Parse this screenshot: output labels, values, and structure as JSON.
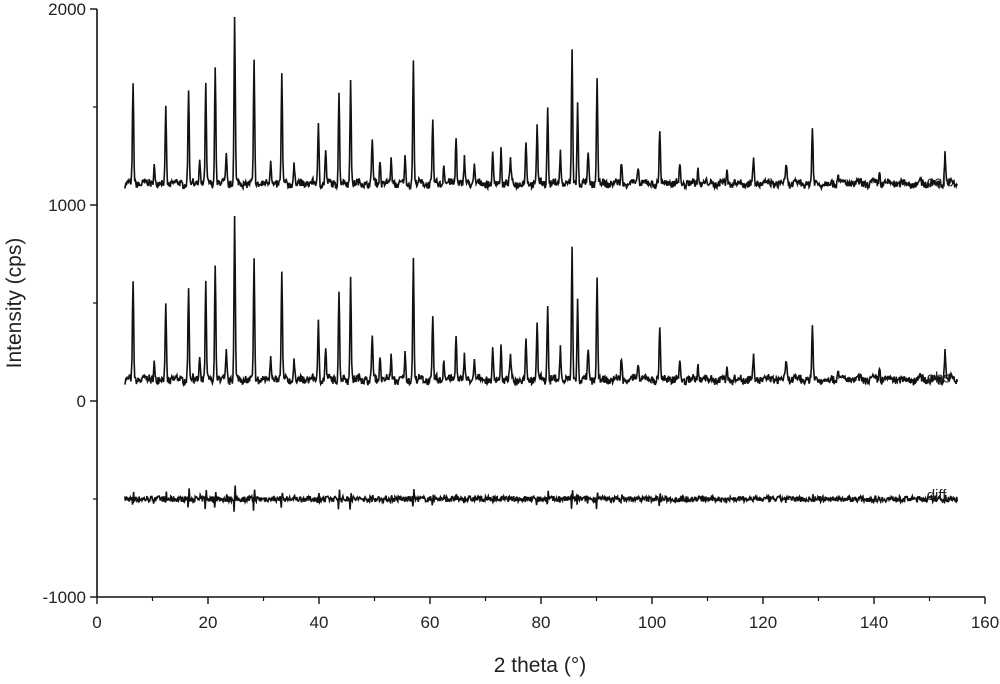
{
  "chart_data": {
    "type": "line",
    "title": "",
    "xlabel": "2 theta (°)",
    "ylabel": "Intensity (cps)",
    "xlim": [
      0,
      160
    ],
    "ylim": [
      -1000,
      2000
    ],
    "x_ticks": [
      0,
      20,
      40,
      60,
      80,
      100,
      120,
      140,
      160
    ],
    "y_ticks": [
      -1000,
      0,
      1000,
      2000
    ],
    "x_tick_labels": [
      "0",
      "20",
      "40",
      "60",
      "80",
      "100",
      "120",
      "140",
      "160"
    ],
    "y_tick_labels": [
      "-1000",
      "0",
      "1000",
      "2000"
    ],
    "grid": false,
    "x_range": [
      5,
      155
    ],
    "peaks": [
      [
        6.5,
        500
      ],
      [
        10.3,
        100
      ],
      [
        12.4,
        380
      ],
      [
        16.5,
        480
      ],
      [
        18.5,
        120
      ],
      [
        19.6,
        480
      ],
      [
        21.3,
        600
      ],
      [
        23.3,
        140
      ],
      [
        24.8,
        830
      ],
      [
        28.3,
        600
      ],
      [
        31.3,
        120
      ],
      [
        33.3,
        540
      ],
      [
        35.5,
        90
      ],
      [
        39.9,
        300
      ],
      [
        41.2,
        160
      ],
      [
        43.6,
        460
      ],
      [
        45.7,
        530
      ],
      [
        49.6,
        230
      ],
      [
        51.0,
        120
      ],
      [
        53.0,
        110
      ],
      [
        55.5,
        120
      ],
      [
        57.0,
        630
      ],
      [
        60.5,
        300
      ],
      [
        62.5,
        110
      ],
      [
        64.7,
        250
      ],
      [
        66.2,
        120
      ],
      [
        68.0,
        90
      ],
      [
        71.3,
        140
      ],
      [
        72.8,
        170
      ],
      [
        74.5,
        120
      ],
      [
        77.3,
        210
      ],
      [
        79.3,
        300
      ],
      [
        81.2,
        390
      ],
      [
        83.5,
        160
      ],
      [
        85.6,
        660
      ],
      [
        86.6,
        400
      ],
      [
        88.5,
        150
      ],
      [
        90.1,
        520
      ],
      [
        94.5,
        120
      ],
      [
        97.5,
        100
      ],
      [
        101.4,
        270
      ],
      [
        105.0,
        100
      ],
      [
        108.3,
        80
      ],
      [
        113.5,
        80
      ],
      [
        118.3,
        140
      ],
      [
        124.2,
        100
      ],
      [
        128.9,
        270
      ],
      [
        133.5,
        60
      ],
      [
        141.0,
        60
      ],
      [
        152.8,
        160
      ]
    ],
    "series": [
      {
        "name": "calc",
        "offset": 1100
      },
      {
        "name": "obs",
        "offset": 100
      },
      {
        "name": "diff",
        "offset": -500
      }
    ]
  }
}
